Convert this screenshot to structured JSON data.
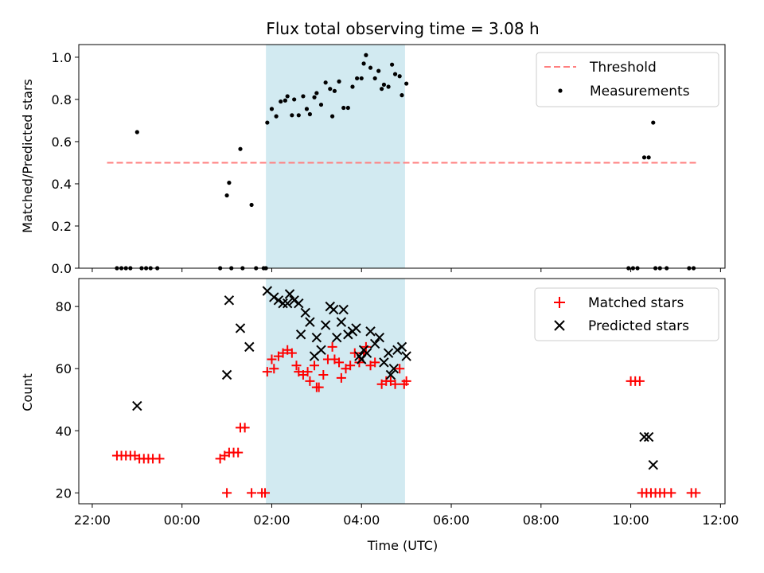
{
  "chart_data": [
    {
      "type": "scatter",
      "title": "Flux total observing time = 3.08 h",
      "xlabel": "",
      "ylabel": "Matched/Predicted stars",
      "ylim": [
        0,
        1.06
      ],
      "yticks": [
        "0.0",
        "0.2",
        "0.4",
        "0.6",
        "0.8",
        "1.0"
      ],
      "xlim": [
        -2.3,
        12.1
      ],
      "highlight_span": [
        1.87,
        4.97
      ],
      "legend_position": "upper right",
      "grid": false,
      "series": [
        {
          "name": "Threshold",
          "kind": "dashed-line",
          "color": "#ff7f7f",
          "x": [
            -1.67,
            11.5
          ],
          "y": [
            0.5,
            0.5
          ]
        },
        {
          "name": "Measurements",
          "kind": "points",
          "color": "#000000",
          "points": [
            [
              -1.45,
              0
            ],
            [
              -1.35,
              0
            ],
            [
              -1.25,
              0
            ],
            [
              -1.15,
              0
            ],
            [
              -1.0,
              0.645
            ],
            [
              -0.9,
              0
            ],
            [
              -0.8,
              0
            ],
            [
              -0.7,
              0
            ],
            [
              -0.55,
              0
            ],
            [
              0.85,
              0
            ],
            [
              1.0,
              0.345
            ],
            [
              1.05,
              0.405
            ],
            [
              1.1,
              0
            ],
            [
              1.3,
              0.565
            ],
            [
              1.35,
              0
            ],
            [
              1.55,
              0.3
            ],
            [
              1.65,
              0
            ],
            [
              1.82,
              0
            ],
            [
              1.87,
              0
            ],
            [
              1.9,
              0.69
            ],
            [
              2.0,
              0.755
            ],
            [
              2.1,
              0.72
            ],
            [
              2.2,
              0.79
            ],
            [
              2.3,
              0.795
            ],
            [
              2.35,
              0.815
            ],
            [
              2.45,
              0.725
            ],
            [
              2.5,
              0.8
            ],
            [
              2.6,
              0.725
            ],
            [
              2.7,
              0.815
            ],
            [
              2.78,
              0.755
            ],
            [
              2.85,
              0.73
            ],
            [
              2.95,
              0.81
            ],
            [
              3.0,
              0.83
            ],
            [
              3.1,
              0.775
            ],
            [
              3.2,
              0.88
            ],
            [
              3.3,
              0.85
            ],
            [
              3.35,
              0.72
            ],
            [
              3.4,
              0.84
            ],
            [
              3.5,
              0.885
            ],
            [
              3.6,
              0.76
            ],
            [
              3.7,
              0.76
            ],
            [
              3.8,
              0.86
            ],
            [
              3.9,
              0.9
            ],
            [
              4.0,
              0.9
            ],
            [
              4.05,
              0.97
            ],
            [
              4.1,
              1.01
            ],
            [
              4.2,
              0.95
            ],
            [
              4.3,
              0.9
            ],
            [
              4.38,
              0.935
            ],
            [
              4.45,
              0.85
            ],
            [
              4.5,
              0.87
            ],
            [
              4.6,
              0.86
            ],
            [
              4.68,
              0.965
            ],
            [
              4.75,
              0.92
            ],
            [
              4.85,
              0.91
            ],
            [
              4.9,
              0.82
            ],
            [
              5.0,
              0.875
            ],
            [
              9.95,
              0
            ],
            [
              10.05,
              0
            ],
            [
              10.15,
              0
            ],
            [
              10.3,
              0.525
            ],
            [
              10.4,
              0.525
            ],
            [
              10.5,
              0.69
            ],
            [
              10.55,
              0
            ],
            [
              10.65,
              0
            ],
            [
              10.8,
              0
            ],
            [
              11.3,
              0
            ],
            [
              11.4,
              0
            ]
          ]
        }
      ]
    },
    {
      "type": "scatter",
      "title": "",
      "xlabel": "Time (UTC)",
      "ylabel": "Count",
      "ylim": [
        16.5,
        89
      ],
      "yticks": [
        "20",
        "40",
        "60",
        "80"
      ],
      "xlim": [
        -2.3,
        12.1
      ],
      "xticks": [
        "22:00",
        "00:00",
        "02:00",
        "04:00",
        "06:00",
        "08:00",
        "10:00",
        "12:00"
      ],
      "highlight_span": [
        1.87,
        4.97
      ],
      "legend_position": "upper right",
      "grid": false,
      "series": [
        {
          "name": "Matched stars",
          "marker": "plus",
          "color": "#ff0000",
          "points": [
            [
              -1.45,
              32
            ],
            [
              -1.35,
              32
            ],
            [
              -1.25,
              32
            ],
            [
              -1.15,
              32
            ],
            [
              -1.05,
              32
            ],
            [
              -0.95,
              31
            ],
            [
              -0.85,
              31
            ],
            [
              -0.75,
              31
            ],
            [
              -0.65,
              31
            ],
            [
              -0.5,
              31
            ],
            [
              0.85,
              31
            ],
            [
              0.95,
              32
            ],
            [
              1.0,
              20
            ],
            [
              1.05,
              33
            ],
            [
              1.15,
              33
            ],
            [
              1.25,
              33
            ],
            [
              1.3,
              41
            ],
            [
              1.4,
              41
            ],
            [
              1.55,
              20
            ],
            [
              1.78,
              20
            ],
            [
              1.85,
              20
            ],
            [
              1.9,
              59
            ],
            [
              2.0,
              63
            ],
            [
              2.05,
              60
            ],
            [
              2.15,
              64
            ],
            [
              2.25,
              65
            ],
            [
              2.35,
              66
            ],
            [
              2.45,
              65
            ],
            [
              2.55,
              61
            ],
            [
              2.6,
              59
            ],
            [
              2.7,
              58
            ],
            [
              2.8,
              59
            ],
            [
              2.85,
              56
            ],
            [
              2.95,
              61
            ],
            [
              3.0,
              54
            ],
            [
              3.05,
              54
            ],
            [
              3.15,
              58
            ],
            [
              3.25,
              63
            ],
            [
              3.35,
              67
            ],
            [
              3.4,
              63
            ],
            [
              3.5,
              62
            ],
            [
              3.55,
              57
            ],
            [
              3.65,
              60
            ],
            [
              3.75,
              61
            ],
            [
              3.85,
              65
            ],
            [
              3.95,
              62
            ],
            [
              4.05,
              65
            ],
            [
              4.1,
              67
            ],
            [
              4.2,
              61
            ],
            [
              4.3,
              62
            ],
            [
              4.45,
              55
            ],
            [
              4.55,
              56
            ],
            [
              4.65,
              56
            ],
            [
              4.75,
              55
            ],
            [
              4.85,
              60
            ],
            [
              4.95,
              55
            ],
            [
              5.0,
              56
            ],
            [
              10.0,
              56
            ],
            [
              10.1,
              56
            ],
            [
              10.2,
              56
            ],
            [
              10.25,
              20
            ],
            [
              10.35,
              20
            ],
            [
              10.45,
              20
            ],
            [
              10.55,
              20
            ],
            [
              10.65,
              20
            ],
            [
              10.75,
              20
            ],
            [
              10.9,
              20
            ],
            [
              11.35,
              20
            ],
            [
              11.45,
              20
            ]
          ]
        },
        {
          "name": "Predicted stars",
          "marker": "x",
          "color": "#000000",
          "points": [
            [
              -1.0,
              48
            ],
            [
              1.0,
              58
            ],
            [
              1.05,
              82
            ],
            [
              1.3,
              73
            ],
            [
              1.5,
              67
            ],
            [
              1.9,
              85
            ],
            [
              2.05,
              83
            ],
            [
              2.15,
              82
            ],
            [
              2.25,
              81
            ],
            [
              2.35,
              81
            ],
            [
              2.4,
              84
            ],
            [
              2.5,
              82
            ],
            [
              2.6,
              81
            ],
            [
              2.65,
              71
            ],
            [
              2.75,
              78
            ],
            [
              2.85,
              75
            ],
            [
              2.95,
              64
            ],
            [
              3.0,
              70
            ],
            [
              3.1,
              66
            ],
            [
              3.2,
              74
            ],
            [
              3.3,
              80
            ],
            [
              3.38,
              79
            ],
            [
              3.45,
              70
            ],
            [
              3.55,
              75
            ],
            [
              3.6,
              79
            ],
            [
              3.7,
              71
            ],
            [
              3.8,
              72
            ],
            [
              3.88,
              73
            ],
            [
              3.95,
              64
            ],
            [
              4.0,
              63
            ],
            [
              4.05,
              66
            ],
            [
              4.12,
              65
            ],
            [
              4.2,
              72
            ],
            [
              4.3,
              68
            ],
            [
              4.4,
              70
            ],
            [
              4.5,
              62
            ],
            [
              4.6,
              65
            ],
            [
              4.65,
              58
            ],
            [
              4.72,
              60
            ],
            [
              4.8,
              66
            ],
            [
              4.9,
              67
            ],
            [
              5.0,
              64
            ],
            [
              10.3,
              38
            ],
            [
              10.4,
              38
            ],
            [
              10.5,
              29
            ]
          ]
        }
      ]
    }
  ]
}
